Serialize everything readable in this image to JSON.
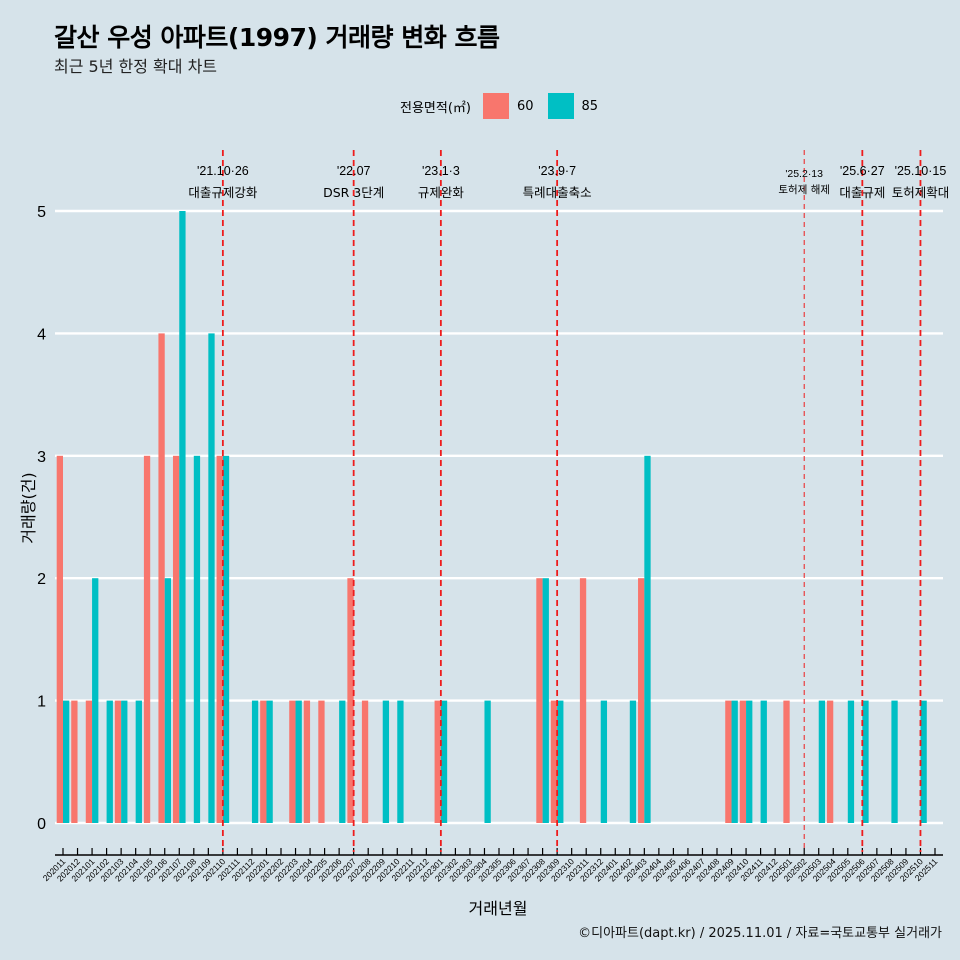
{
  "chart_data": {
    "type": "bar",
    "title": "갈산 우성 아파트(1997) 거래량 변화 흐름",
    "subtitle": "최근 5년 한정 확대 차트",
    "xlabel": "거래년월",
    "ylabel": "거래량(건)",
    "ylim": [
      0,
      5
    ],
    "yticks": [
      "0",
      "1",
      "2",
      "3",
      "4",
      "5"
    ],
    "grid": "horizontal",
    "legend": {
      "title": "전용면적(㎡)",
      "placement": "top"
    },
    "categories": [
      "202011",
      "202012",
      "202101",
      "202102",
      "202103",
      "202104",
      "202105",
      "202106",
      "202107",
      "202108",
      "202109",
      "202110",
      "202111",
      "202112",
      "202201",
      "202202",
      "202203",
      "202204",
      "202205",
      "202206",
      "202207",
      "202208",
      "202209",
      "202210",
      "202211",
      "202212",
      "202301",
      "202302",
      "202303",
      "202304",
      "202305",
      "202306",
      "202307",
      "202308",
      "202309",
      "202310",
      "202311",
      "202312",
      "202401",
      "202402",
      "202403",
      "202404",
      "202405",
      "202406",
      "202407",
      "202408",
      "202409",
      "202410",
      "202411",
      "202412",
      "202501",
      "202502",
      "202503",
      "202504",
      "202505",
      "202506",
      "202507",
      "202508",
      "202509",
      "202510",
      "202511"
    ],
    "series": [
      {
        "name": "60",
        "color": "#f8766d",
        "values": [
          3,
          1,
          1,
          0,
          1,
          0,
          3,
          4,
          3,
          0,
          0,
          3,
          0,
          0,
          1,
          0,
          1,
          1,
          1,
          0,
          2,
          1,
          0,
          0,
          0,
          0,
          1,
          0,
          0,
          0,
          0,
          0,
          0,
          2,
          1,
          0,
          2,
          0,
          0,
          0,
          2,
          0,
          0,
          0,
          0,
          0,
          1,
          1,
          0,
          0,
          1,
          0,
          0,
          1,
          0,
          0,
          0,
          0,
          0,
          0,
          0
        ]
      },
      {
        "name": "85",
        "color": "#00bfc4",
        "values": [
          1,
          0,
          2,
          1,
          1,
          1,
          0,
          2,
          5,
          3,
          4,
          3,
          0,
          1,
          1,
          0,
          1,
          0,
          0,
          1,
          0,
          0,
          1,
          1,
          0,
          0,
          1,
          0,
          0,
          1,
          0,
          0,
          0,
          2,
          1,
          0,
          0,
          1,
          0,
          1,
          3,
          0,
          0,
          0,
          0,
          0,
          1,
          1,
          1,
          0,
          0,
          0,
          1,
          0,
          1,
          1,
          0,
          1,
          0,
          1,
          0
        ]
      }
    ],
    "annotations": [
      {
        "at": "202110",
        "date": "'21.10·26",
        "label": "대출규제강화",
        "style": "major"
      },
      {
        "at": "202207",
        "date": "'22.07",
        "label": "DSR 3단계",
        "style": "major"
      },
      {
        "at": "202301",
        "date": "'23.1·3",
        "label": "규제완화",
        "style": "major"
      },
      {
        "at": "202309",
        "date": "'23.9·7",
        "label": "특례대출축소",
        "style": "major"
      },
      {
        "at": "202502",
        "date": "'25.2·13",
        "label": "토허제 해제",
        "style": "minor"
      },
      {
        "at": "202506",
        "date": "'25.6·27",
        "label": "대출규제",
        "style": "major"
      },
      {
        "at": "202510",
        "date": "'25.10·15",
        "label": "토허제확대",
        "style": "major"
      }
    ],
    "caption": "©디아파트(dapt.kr) / 2025.11.01 / 자료=국토교통부 실거래가"
  }
}
